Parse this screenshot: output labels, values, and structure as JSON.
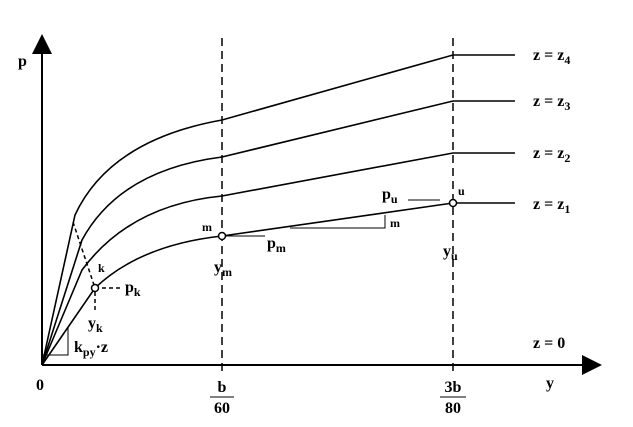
{
  "axes": {
    "y_label": "p",
    "x_label": "y",
    "origin": "0"
  },
  "curves": [
    {
      "main": "z = z",
      "sub": "1"
    },
    {
      "main": "z = z",
      "sub": "2"
    },
    {
      "main": "z = z",
      "sub": "3"
    },
    {
      "main": "z = z",
      "sub": "4"
    },
    {
      "main": "z = 0"
    }
  ],
  "points": {
    "k": {
      "label": "k",
      "p": {
        "main": "p",
        "sub": "k"
      },
      "y": {
        "main": "y",
        "sub": "k"
      }
    },
    "m": {
      "label": "m",
      "p": {
        "main": "p",
        "sub": "m"
      },
      "y": {
        "main": "y",
        "sub": "m"
      },
      "slope": "m"
    },
    "u": {
      "label": "u",
      "p": {
        "main": "p",
        "sub": "u"
      },
      "y": {
        "main": "y",
        "sub": "u"
      }
    }
  },
  "initial_slope": {
    "main": "k",
    "sub": "py",
    "tail": "·z"
  },
  "x_marks": [
    {
      "num": "b",
      "den": "60"
    },
    {
      "num": "3b",
      "den": "80"
    }
  ]
}
